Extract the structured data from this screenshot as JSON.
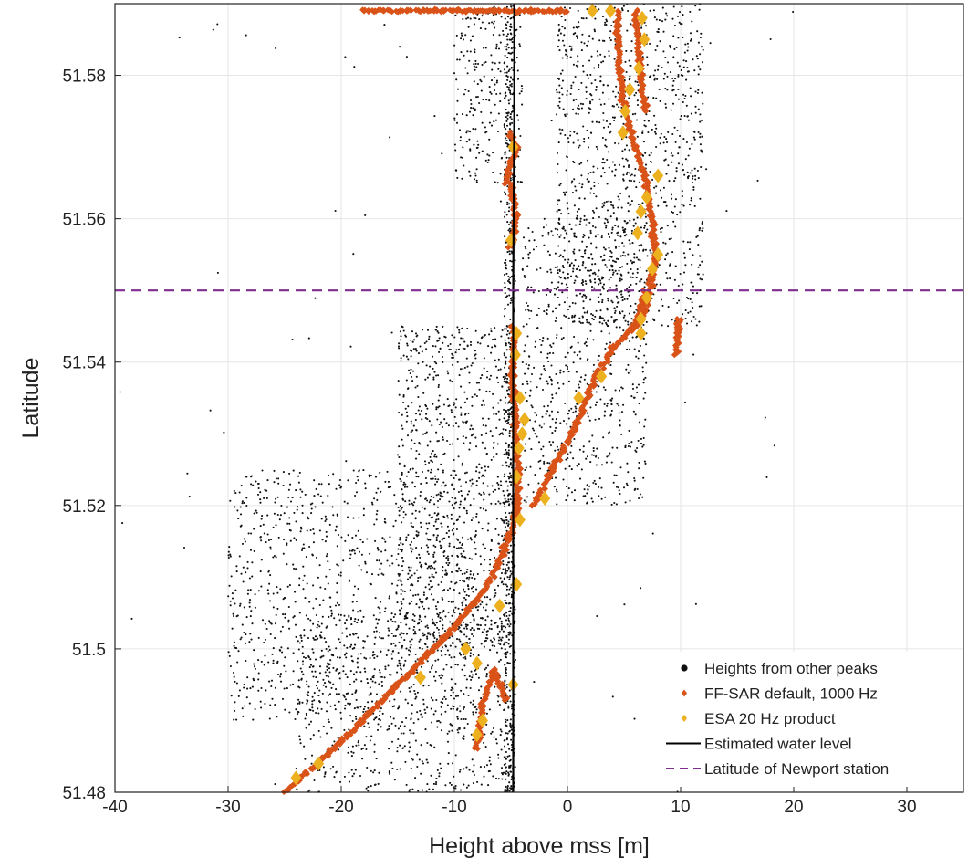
{
  "chart_data": {
    "type": "scatter",
    "title": "",
    "xlabel": "Height above mss [m]",
    "ylabel": "Latitude",
    "xlim": [
      -40,
      35
    ],
    "ylim": [
      51.48,
      51.59
    ],
    "x_ticks": [
      -40,
      -30,
      -20,
      -10,
      0,
      10,
      20,
      30
    ],
    "x_tick_labels": [
      "-40",
      "-30",
      "-20",
      "-10",
      "0",
      "10",
      "20",
      "30"
    ],
    "y_ticks": [
      51.48,
      51.5,
      51.52,
      51.54,
      51.56,
      51.58
    ],
    "y_tick_labels": [
      "51.48",
      "51.5",
      "51.52",
      "51.54",
      "51.56",
      "51.58"
    ],
    "grid": true,
    "legend_position": "bottom-right",
    "colors": {
      "other_peaks": "#111111",
      "ffsar": "#d95319",
      "esa": "#edb120",
      "water_level": "#000000",
      "newport": "#7e2f8e"
    },
    "series": [
      {
        "name": "Heights from other peaks",
        "kind": "scatter-dots",
        "density_regions": [
          {
            "lat_range": [
              51.48,
              51.59
            ],
            "x_range": [
              -5.6,
              -4.6
            ],
            "count": 700
          },
          {
            "lat_range": [
              51.48,
              51.505
            ],
            "x_range": [
              -24,
              -5
            ],
            "count": 700
          },
          {
            "lat_range": [
              51.49,
              51.525
            ],
            "x_range": [
              -30,
              -8
            ],
            "count": 1000
          },
          {
            "lat_range": [
              51.5,
              51.545
            ],
            "x_range": [
              -15,
              -5
            ],
            "count": 900
          },
          {
            "lat_range": [
              51.52,
              51.56
            ],
            "x_range": [
              -4,
              7
            ],
            "count": 700
          },
          {
            "lat_range": [
              51.545,
              51.59
            ],
            "x_range": [
              -1,
              12
            ],
            "count": 1100
          },
          {
            "lat_range": [
              51.565,
              51.59
            ],
            "x_range": [
              -10,
              -4
            ],
            "count": 250
          },
          {
            "lat_range": [
              51.48,
              51.59
            ],
            "x_range": [
              -40,
              20
            ],
            "count": 80
          }
        ]
      },
      {
        "name": "FF-SAR default, 1000 Hz",
        "kind": "dense-track",
        "tracks": [
          [
            [
              -25,
              51.48
            ],
            [
              -20,
              51.487
            ],
            [
              -15,
              51.495
            ],
            [
              -10,
              51.503
            ],
            [
              -7,
              51.509
            ],
            [
              -5,
              51.516
            ],
            [
              -4.5,
              51.52
            ]
          ],
          [
            [
              -4.5,
              51.518
            ],
            [
              -4.4,
              51.525
            ],
            [
              -4.6,
              51.532
            ],
            [
              -4.9,
              51.538
            ],
            [
              -4.7,
              51.545
            ]
          ],
          [
            [
              -3,
              51.52
            ],
            [
              -1,
              51.526
            ],
            [
              1,
              51.532
            ],
            [
              2.5,
              51.538
            ],
            [
              4,
              51.542
            ],
            [
              6,
              51.545
            ],
            [
              7,
              51.55
            ]
          ],
          [
            [
              -8,
              51.486
            ],
            [
              -7.5,
              51.492
            ],
            [
              -6.5,
              51.497
            ],
            [
              -5.5,
              51.493
            ]
          ],
          [
            [
              -5.5,
              51.565
            ],
            [
              -4.5,
              51.57
            ],
            [
              -5,
              51.572
            ]
          ],
          [
            [
              -5,
              51.556
            ],
            [
              -4.5,
              51.56
            ],
            [
              -5,
              51.565
            ]
          ],
          [
            [
              4.5,
              51.589
            ],
            [
              4.5,
              51.582
            ],
            [
              5,
              51.576
            ],
            [
              6,
              51.57
            ],
            [
              7,
              51.565
            ],
            [
              7.5,
              51.56
            ],
            [
              7.8,
              51.554
            ],
            [
              7,
              51.548
            ],
            [
              6,
              51.545
            ]
          ],
          [
            [
              6,
              51.589
            ],
            [
              6.5,
              51.58
            ],
            [
              7,
              51.575
            ]
          ],
          [
            [
              9.8,
              51.546
            ],
            [
              9.7,
              51.541
            ]
          ],
          [
            [
              -18,
              51.589
            ],
            [
              -15,
              51.589
            ],
            [
              -8,
              51.589
            ],
            [
              -4,
              51.589
            ],
            [
              0,
              51.589
            ]
          ]
        ]
      },
      {
        "name": "ESA 20 Hz product",
        "x": [
          -24,
          -22,
          -13,
          -9,
          -8,
          -6,
          -4.5,
          -4.8,
          -7.5,
          -8,
          -4.2,
          -4.5,
          -4.3,
          -4.0,
          -3.8,
          -4.2,
          -4.6,
          -2,
          1,
          3,
          6.5,
          6.5,
          7,
          7.5,
          8,
          6.2,
          6.5,
          7,
          8,
          4.9,
          5.1,
          5.5,
          6.3,
          6.8,
          6.6,
          3.8,
          2.2,
          -4.8,
          -5,
          -4.5
        ],
        "y": [
          51.482,
          51.484,
          51.496,
          51.5,
          51.498,
          51.506,
          51.509,
          51.495,
          51.49,
          51.488,
          51.518,
          51.524,
          51.528,
          51.53,
          51.532,
          51.535,
          51.541,
          51.521,
          51.535,
          51.538,
          51.544,
          51.546,
          51.549,
          51.553,
          51.555,
          51.558,
          51.561,
          51.563,
          51.566,
          51.572,
          51.575,
          51.578,
          51.581,
          51.585,
          51.588,
          51.589,
          51.589,
          51.57,
          51.557,
          51.544
        ]
      },
      {
        "name": "Estimated water level",
        "kind": "line",
        "x": [
          -4.8,
          -4.8,
          -4.7,
          -4.7
        ],
        "y": [
          51.48,
          51.55,
          51.575,
          51.59
        ]
      },
      {
        "name": "Latitude of Newport station",
        "kind": "dashed-hline",
        "y": 51.55
      }
    ],
    "legend": [
      {
        "label": "Heights from other peaks",
        "marker": "dot",
        "color": "#111111"
      },
      {
        "label": "FF-SAR default, 1000 Hz",
        "marker": "diamond-small",
        "color": "#d95319"
      },
      {
        "label": "ESA 20 Hz product",
        "marker": "diamond-small",
        "color": "#edb120"
      },
      {
        "label": "Estimated water level",
        "marker": "line",
        "color": "#000000"
      },
      {
        "label": "Latitude of Newport station",
        "marker": "dashed-line",
        "color": "#7e2f8e"
      }
    ]
  }
}
